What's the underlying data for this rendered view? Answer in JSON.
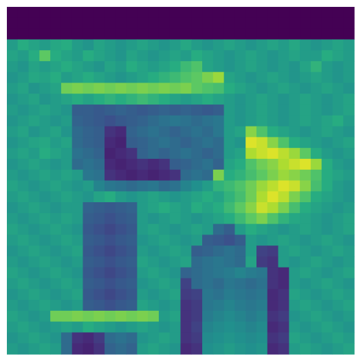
{
  "chart_data": {
    "type": "heatmap",
    "colormap": "viridis",
    "vmin": 0,
    "vmax": 1,
    "xlabel": "",
    "ylabel": "",
    "title": "",
    "grid": false,
    "axes_visible": false,
    "rows": 32,
    "cols": 32,
    "palette": {
      "background": "#ffffff",
      "low": "#440154",
      "high": "#fde725"
    },
    "values": [
      [
        0.0,
        0.0,
        0.0,
        0.0,
        0.0,
        0.0,
        0.0,
        0.0,
        0.0,
        0.0,
        0.0,
        0.0,
        0.0,
        0.0,
        0.0,
        0.0,
        0.0,
        0.0,
        0.0,
        0.0,
        0.0,
        0.0,
        0.0,
        0.0,
        0.0,
        0.0,
        0.0,
        0.0,
        0.0,
        0.0,
        0.0,
        0.0
      ],
      [
        0.0,
        0.0,
        0.0,
        0.0,
        0.0,
        0.0,
        0.0,
        0.0,
        0.0,
        0.0,
        0.0,
        0.0,
        0.0,
        0.0,
        0.0,
        0.0,
        0.0,
        0.0,
        0.0,
        0.0,
        0.0,
        0.0,
        0.0,
        0.0,
        0.0,
        0.0,
        0.0,
        0.0,
        0.0,
        0.0,
        0.0,
        0.0
      ],
      [
        0.0,
        0.0,
        0.0,
        0.0,
        0.0,
        0.0,
        0.0,
        0.0,
        0.0,
        0.0,
        0.0,
        0.0,
        0.0,
        0.0,
        0.0,
        0.0,
        0.0,
        0.0,
        0.0,
        0.0,
        0.0,
        0.0,
        0.0,
        0.0,
        0.0,
        0.0,
        0.0,
        0.0,
        0.0,
        0.0,
        0.0,
        0.0
      ],
      [
        0.55,
        0.62,
        0.58,
        0.55,
        0.6,
        0.62,
        0.55,
        0.52,
        0.58,
        0.55,
        0.52,
        0.55,
        0.58,
        0.55,
        0.52,
        0.55,
        0.6,
        0.55,
        0.52,
        0.55,
        0.58,
        0.55,
        0.52,
        0.55,
        0.58,
        0.55,
        0.6,
        0.55,
        0.52,
        0.55,
        0.58,
        0.55
      ],
      [
        0.58,
        0.55,
        0.62,
        0.75,
        0.62,
        0.58,
        0.55,
        0.62,
        0.58,
        0.55,
        0.52,
        0.58,
        0.55,
        0.52,
        0.55,
        0.58,
        0.55,
        0.62,
        0.58,
        0.55,
        0.52,
        0.55,
        0.58,
        0.55,
        0.52,
        0.55,
        0.58,
        0.55,
        0.55,
        0.62,
        0.58,
        0.55
      ],
      [
        0.55,
        0.52,
        0.58,
        0.55,
        0.58,
        0.62,
        0.58,
        0.55,
        0.52,
        0.58,
        0.55,
        0.62,
        0.58,
        0.55,
        0.58,
        0.62,
        0.68,
        0.72,
        0.58,
        0.55,
        0.52,
        0.55,
        0.58,
        0.55,
        0.52,
        0.55,
        0.52,
        0.58,
        0.65,
        0.55,
        0.52,
        0.55
      ],
      [
        0.52,
        0.55,
        0.6,
        0.58,
        0.62,
        0.55,
        0.58,
        0.62,
        0.58,
        0.55,
        0.52,
        0.55,
        0.58,
        0.62,
        0.65,
        0.68,
        0.72,
        0.75,
        0.8,
        0.85,
        0.58,
        0.55,
        0.52,
        0.55,
        0.58,
        0.55,
        0.52,
        0.55,
        0.58,
        0.55,
        0.52,
        0.55
      ],
      [
        0.55,
        0.58,
        0.52,
        0.55,
        0.58,
        0.78,
        0.8,
        0.78,
        0.8,
        0.78,
        0.8,
        0.78,
        0.8,
        0.78,
        0.8,
        0.78,
        0.8,
        0.75,
        0.72,
        0.7,
        0.62,
        0.58,
        0.55,
        0.52,
        0.55,
        0.58,
        0.55,
        0.52,
        0.55,
        0.58,
        0.55,
        0.52
      ],
      [
        0.52,
        0.55,
        0.58,
        0.52,
        0.55,
        0.58,
        0.62,
        0.58,
        0.62,
        0.65,
        0.62,
        0.65,
        0.68,
        0.65,
        0.62,
        0.58,
        0.55,
        0.58,
        0.62,
        0.58,
        0.55,
        0.52,
        0.55,
        0.58,
        0.55,
        0.52,
        0.55,
        0.58,
        0.55,
        0.52,
        0.55,
        0.58
      ],
      [
        0.55,
        0.52,
        0.55,
        0.58,
        0.55,
        0.52,
        0.3,
        0.3,
        0.28,
        0.3,
        0.32,
        0.3,
        0.28,
        0.3,
        0.32,
        0.3,
        0.32,
        0.3,
        0.28,
        0.3,
        0.55,
        0.52,
        0.55,
        0.58,
        0.55,
        0.52,
        0.55,
        0.58,
        0.55,
        0.52,
        0.55,
        0.58
      ],
      [
        0.52,
        0.55,
        0.58,
        0.55,
        0.52,
        0.55,
        0.32,
        0.3,
        0.28,
        0.25,
        0.28,
        0.3,
        0.32,
        0.35,
        0.38,
        0.4,
        0.38,
        0.35,
        0.38,
        0.4,
        0.55,
        0.52,
        0.55,
        0.58,
        0.55,
        0.52,
        0.55,
        0.58,
        0.55,
        0.58,
        0.62,
        0.55
      ],
      [
        0.55,
        0.58,
        0.52,
        0.55,
        0.58,
        0.52,
        0.35,
        0.32,
        0.3,
        0.15,
        0.12,
        0.32,
        0.35,
        0.38,
        0.35,
        0.32,
        0.35,
        0.38,
        0.35,
        0.4,
        0.55,
        0.58,
        0.82,
        0.72,
        0.62,
        0.58,
        0.55,
        0.52,
        0.55,
        0.58,
        0.55,
        0.52
      ],
      [
        0.52,
        0.55,
        0.58,
        0.6,
        0.55,
        0.58,
        0.35,
        0.32,
        0.3,
        0.12,
        0.1,
        0.3,
        0.32,
        0.35,
        0.38,
        0.35,
        0.32,
        0.35,
        0.38,
        0.35,
        0.55,
        0.52,
        0.95,
        0.92,
        0.82,
        0.72,
        0.62,
        0.58,
        0.55,
        0.52,
        0.55,
        0.58
      ],
      [
        0.55,
        0.58,
        0.55,
        0.62,
        0.58,
        0.55,
        0.38,
        0.35,
        0.32,
        0.1,
        0.12,
        0.15,
        0.32,
        0.35,
        0.32,
        0.35,
        0.38,
        0.35,
        0.32,
        0.35,
        0.55,
        0.58,
        0.88,
        0.92,
        0.95,
        0.9,
        0.85,
        0.75,
        0.62,
        0.55,
        0.52,
        0.55
      ],
      [
        0.52,
        0.55,
        0.58,
        0.55,
        0.52,
        0.55,
        0.35,
        0.38,
        0.35,
        0.12,
        0.1,
        0.12,
        0.15,
        0.12,
        0.15,
        0.3,
        0.32,
        0.35,
        0.38,
        0.32,
        0.58,
        0.62,
        0.72,
        0.78,
        0.82,
        0.88,
        0.92,
        0.95,
        0.85,
        0.62,
        0.55,
        0.52
      ],
      [
        0.55,
        0.52,
        0.55,
        0.58,
        0.55,
        0.58,
        0.55,
        0.4,
        0.38,
        0.15,
        0.12,
        0.1,
        0.12,
        0.1,
        0.12,
        0.15,
        0.35,
        0.38,
        0.35,
        0.8,
        0.62,
        0.65,
        0.7,
        0.75,
        0.8,
        0.85,
        0.82,
        0.78,
        0.72,
        0.62,
        0.58,
        0.55
      ],
      [
        0.58,
        0.55,
        0.52,
        0.55,
        0.58,
        0.55,
        0.52,
        0.55,
        0.45,
        0.4,
        0.38,
        0.35,
        0.38,
        0.4,
        0.35,
        0.38,
        0.45,
        0.5,
        0.55,
        0.65,
        0.68,
        0.72,
        0.78,
        0.85,
        0.9,
        0.95,
        0.92,
        0.82,
        0.7,
        0.62,
        0.55,
        0.52
      ],
      [
        0.55,
        0.58,
        0.55,
        0.52,
        0.55,
        0.58,
        0.55,
        0.52,
        0.58,
        0.62,
        0.55,
        0.52,
        0.55,
        0.58,
        0.55,
        0.52,
        0.55,
        0.58,
        0.62,
        0.58,
        0.65,
        0.7,
        0.78,
        0.88,
        0.95,
        0.9,
        0.8,
        0.72,
        0.62,
        0.58,
        0.55,
        0.52
      ],
      [
        0.52,
        0.55,
        0.58,
        0.55,
        0.52,
        0.55,
        0.55,
        0.32,
        0.3,
        0.28,
        0.3,
        0.32,
        0.55,
        0.58,
        0.62,
        0.58,
        0.55,
        0.62,
        0.58,
        0.62,
        0.68,
        0.75,
        0.82,
        0.92,
        0.88,
        0.8,
        0.7,
        0.62,
        0.58,
        0.55,
        0.52,
        0.55
      ],
      [
        0.55,
        0.52,
        0.55,
        0.58,
        0.55,
        0.58,
        0.55,
        0.3,
        0.28,
        0.25,
        0.28,
        0.3,
        0.55,
        0.52,
        0.55,
        0.58,
        0.55,
        0.52,
        0.55,
        0.58,
        0.62,
        0.68,
        0.75,
        0.8,
        0.72,
        0.65,
        0.6,
        0.58,
        0.55,
        0.52,
        0.55,
        0.58
      ],
      [
        0.58,
        0.55,
        0.52,
        0.55,
        0.58,
        0.55,
        0.52,
        0.28,
        0.25,
        0.22,
        0.25,
        0.28,
        0.55,
        0.58,
        0.55,
        0.52,
        0.55,
        0.58,
        0.55,
        0.35,
        0.3,
        0.55,
        0.62,
        0.58,
        0.55,
        0.52,
        0.55,
        0.58,
        0.55,
        0.52,
        0.55,
        0.58
      ],
      [
        0.55,
        0.58,
        0.55,
        0.52,
        0.55,
        0.58,
        0.55,
        0.3,
        0.28,
        0.25,
        0.28,
        0.3,
        0.52,
        0.55,
        0.58,
        0.55,
        0.52,
        0.55,
        0.3,
        0.28,
        0.25,
        0.3,
        0.55,
        0.52,
        0.55,
        0.58,
        0.55,
        0.52,
        0.55,
        0.58,
        0.55,
        0.52
      ],
      [
        0.52,
        0.55,
        0.58,
        0.55,
        0.52,
        0.55,
        0.58,
        0.28,
        0.25,
        0.22,
        0.25,
        0.28,
        0.55,
        0.52,
        0.55,
        0.58,
        0.55,
        0.3,
        0.32,
        0.35,
        0.38,
        0.35,
        0.55,
        0.2,
        0.18,
        0.55,
        0.58,
        0.55,
        0.52,
        0.55,
        0.58,
        0.55
      ],
      [
        0.55,
        0.52,
        0.55,
        0.58,
        0.55,
        0.52,
        0.55,
        0.3,
        0.28,
        0.25,
        0.28,
        0.3,
        0.58,
        0.55,
        0.52,
        0.55,
        0.58,
        0.35,
        0.38,
        0.4,
        0.38,
        0.35,
        0.58,
        0.18,
        0.15,
        0.55,
        0.52,
        0.55,
        0.58,
        0.55,
        0.52,
        0.55
      ],
      [
        0.58,
        0.55,
        0.52,
        0.55,
        0.58,
        0.55,
        0.52,
        0.28,
        0.25,
        0.22,
        0.25,
        0.28,
        0.55,
        0.58,
        0.55,
        0.52,
        0.32,
        0.35,
        0.38,
        0.4,
        0.42,
        0.45,
        0.42,
        0.4,
        0.15,
        0.12,
        0.55,
        0.58,
        0.55,
        0.52,
        0.55,
        0.58
      ],
      [
        0.55,
        0.58,
        0.55,
        0.52,
        0.55,
        0.58,
        0.55,
        0.3,
        0.28,
        0.25,
        0.28,
        0.3,
        0.52,
        0.55,
        0.58,
        0.55,
        0.2,
        0.35,
        0.38,
        0.35,
        0.4,
        0.38,
        0.35,
        0.38,
        0.15,
        0.12,
        0.55,
        0.52,
        0.55,
        0.58,
        0.55,
        0.52
      ],
      [
        0.52,
        0.55,
        0.58,
        0.55,
        0.52,
        0.55,
        0.58,
        0.28,
        0.25,
        0.22,
        0.25,
        0.28,
        0.55,
        0.52,
        0.55,
        0.58,
        0.18,
        0.2,
        0.4,
        0.38,
        0.42,
        0.4,
        0.38,
        0.4,
        0.12,
        0.15,
        0.58,
        0.55,
        0.52,
        0.55,
        0.58,
        0.55
      ],
      [
        0.55,
        0.52,
        0.55,
        0.58,
        0.55,
        0.52,
        0.55,
        0.3,
        0.28,
        0.25,
        0.28,
        0.3,
        0.58,
        0.55,
        0.52,
        0.55,
        0.15,
        0.18,
        0.4,
        0.42,
        0.45,
        0.42,
        0.4,
        0.42,
        0.12,
        0.15,
        0.55,
        0.58,
        0.55,
        0.52,
        0.55,
        0.58
      ],
      [
        0.58,
        0.55,
        0.52,
        0.55,
        0.78,
        0.78,
        0.8,
        0.78,
        0.8,
        0.78,
        0.8,
        0.78,
        0.8,
        0.78,
        0.55,
        0.58,
        0.15,
        0.18,
        0.42,
        0.45,
        0.48,
        0.45,
        0.42,
        0.45,
        0.15,
        0.18,
        0.52,
        0.55,
        0.58,
        0.55,
        0.52,
        0.55
      ],
      [
        0.55,
        0.58,
        0.55,
        0.52,
        0.55,
        0.58,
        0.55,
        0.62,
        0.58,
        0.55,
        0.52,
        0.55,
        0.58,
        0.55,
        0.52,
        0.55,
        0.15,
        0.2,
        0.45,
        0.48,
        0.5,
        0.48,
        0.45,
        0.48,
        0.12,
        0.15,
        0.55,
        0.52,
        0.55,
        0.58,
        0.55,
        0.52
      ],
      [
        0.52,
        0.55,
        0.58,
        0.55,
        0.52,
        0.35,
        0.15,
        0.12,
        0.18,
        0.35,
        0.38,
        0.35,
        0.52,
        0.55,
        0.58,
        0.55,
        0.15,
        0.18,
        0.48,
        0.5,
        0.52,
        0.5,
        0.48,
        0.5,
        0.15,
        0.18,
        0.58,
        0.55,
        0.52,
        0.55,
        0.58,
        0.55
      ],
      [
        0.55,
        0.52,
        0.55,
        0.58,
        0.55,
        0.35,
        0.12,
        0.1,
        0.15,
        0.32,
        0.35,
        0.32,
        0.55,
        0.58,
        0.55,
        0.52,
        0.12,
        0.15,
        0.5,
        0.52,
        0.55,
        0.52,
        0.5,
        0.52,
        0.12,
        0.15,
        0.55,
        0.58,
        0.55,
        0.52,
        0.55,
        0.58
      ]
    ]
  }
}
